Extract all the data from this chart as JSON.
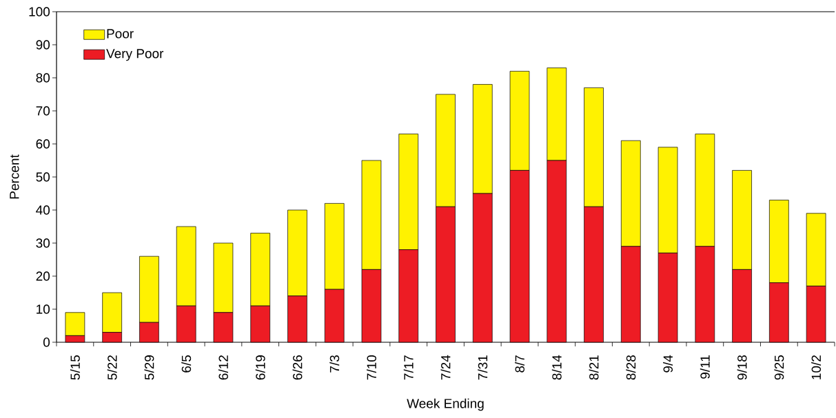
{
  "chart_data": {
    "type": "bar",
    "stacked": true,
    "xlabel": "Week Ending",
    "ylabel": "Percent",
    "categories": [
      "5/15",
      "5/22",
      "5/29",
      "6/5",
      "6/12",
      "6/19",
      "6/26",
      "7/3",
      "7/10",
      "7/17",
      "7/24",
      "7/31",
      "8/7",
      "8/14",
      "8/21",
      "8/28",
      "9/4",
      "9/11",
      "9/18",
      "9/25",
      "10/2"
    ],
    "series": [
      {
        "name": "Very Poor",
        "color": "#ed1c24",
        "values": [
          2,
          3,
          6,
          11,
          9,
          11,
          14,
          16,
          22,
          28,
          41,
          45,
          52,
          55,
          41,
          29,
          27,
          29,
          22,
          18,
          17
        ]
      },
      {
        "name": "Poor",
        "color": "#fff200",
        "values": [
          7,
          12,
          20,
          24,
          21,
          22,
          26,
          26,
          33,
          35,
          34,
          33,
          30,
          28,
          36,
          32,
          32,
          34,
          30,
          25,
          22
        ]
      }
    ],
    "ylim": [
      0,
      100
    ],
    "yticks": [
      0,
      10,
      20,
      30,
      40,
      50,
      60,
      70,
      80,
      90,
      100
    ],
    "legend": "top left"
  }
}
